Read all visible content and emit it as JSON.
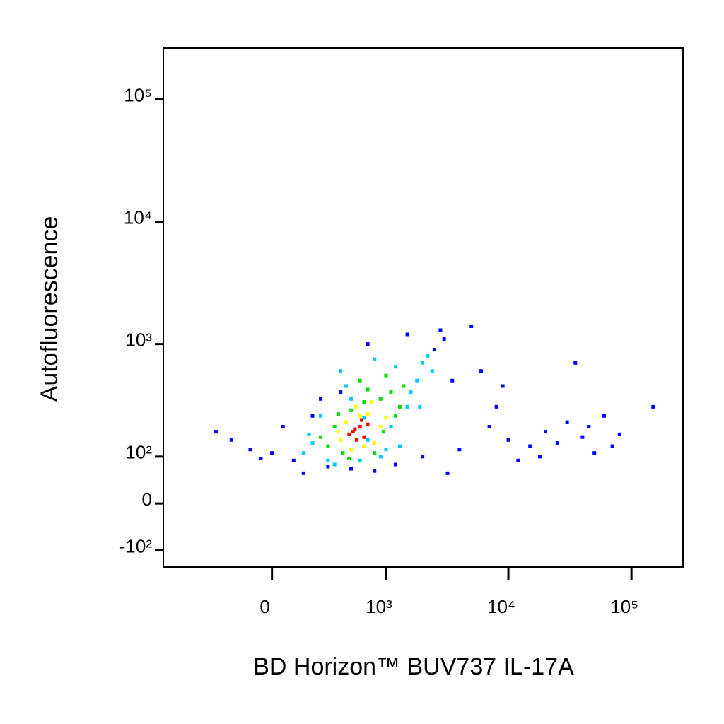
{
  "chart_data": {
    "type": "scatter",
    "x_label": "BD Horizon™ BUV737 IL-17A",
    "y_label": "Autofluorescence",
    "x_scale": "biexponential",
    "y_scale": "biexponential",
    "xlim": [
      -900,
      262144
    ],
    "ylim": [
      -150,
      262144
    ],
    "xticks": [
      {
        "value": 0,
        "label": "0"
      },
      {
        "value": 1000,
        "label": "10³"
      },
      {
        "value": 10000,
        "label": "10⁴"
      },
      {
        "value": 100000,
        "label": "10⁵"
      }
    ],
    "yticks": [
      {
        "value": -100,
        "label": "-10²"
      },
      {
        "value": 0,
        "label": "0"
      },
      {
        "value": 100,
        "label": "10²"
      },
      {
        "value": 1000,
        "label": "10³"
      },
      {
        "value": 10000,
        "label": "10⁴"
      },
      {
        "value": 100000,
        "label": "10⁵"
      }
    ],
    "series": [
      {
        "color": "#0000ff",
        "x": [
          -200,
          -100,
          50,
          100,
          -300,
          0,
          150,
          300,
          500,
          800,
          1200,
          2000,
          2500,
          3000,
          3500,
          5000,
          7000,
          10000,
          15000,
          20000,
          30000,
          40000,
          50000,
          60000,
          80000,
          4000,
          8000,
          12000,
          25000,
          45000,
          700,
          400,
          200,
          1500,
          2800,
          3200,
          -50,
          250,
          6000,
          18000,
          150000,
          70000,
          35000,
          9000
        ],
        "y": [
          150,
          120,
          200,
          90,
          180,
          110,
          60,
          75,
          70,
          65,
          80,
          100,
          900,
          1100,
          500,
          1400,
          200,
          150,
          130,
          180,
          220,
          160,
          110,
          250,
          170,
          120,
          300,
          90,
          140,
          200,
          1000,
          400,
          250,
          1200,
          1300,
          60,
          95,
          350,
          600,
          100,
          300,
          130,
          700,
          450
        ]
      },
      {
        "color": "#00c8ff",
        "x": [
          200,
          150,
          1500,
          1800,
          300,
          1200,
          600,
          400,
          2000,
          900,
          250,
          1600,
          700,
          350,
          1100,
          500,
          1900,
          2200,
          800,
          450,
          1300,
          180,
          1000,
          650,
          2400
        ],
        "y": [
          140,
          110,
          300,
          500,
          90,
          650,
          90,
          600,
          700,
          100,
          250,
          400,
          150,
          80,
          200,
          350,
          300,
          800,
          750,
          450,
          130,
          170,
          120,
          240,
          600
        ]
      },
      {
        "color": "#00e000",
        "x": [
          300,
          350,
          900,
          1200,
          420,
          1100,
          700,
          250,
          500,
          1300,
          800,
          600,
          380,
          950,
          1000,
          480,
          1400,
          650
        ],
        "y": [
          130,
          200,
          350,
          250,
          110,
          400,
          420,
          160,
          280,
          300,
          110,
          500,
          260,
          180,
          550,
          95,
          450,
          330
        ]
      },
      {
        "color": "#ffff00",
        "x": [
          400,
          450,
          700,
          800,
          550,
          900,
          380,
          650,
          1000,
          500,
          750,
          600
        ],
        "y": [
          150,
          220,
          260,
          140,
          300,
          200,
          180,
          130,
          240,
          120,
          330,
          250
        ]
      },
      {
        "color": "#ff0000",
        "x": [
          520,
          600,
          650,
          480,
          700,
          560,
          620,
          540
        ],
        "y": [
          180,
          200,
          160,
          170,
          210,
          150,
          230,
          190
        ]
      }
    ]
  }
}
